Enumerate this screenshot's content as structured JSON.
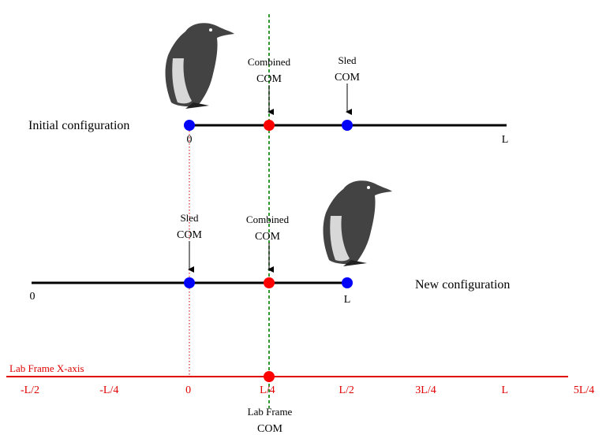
{
  "initial": {
    "label": "Initial configuration",
    "start_label": "0",
    "end_label": "L",
    "combined_com": [
      "Combined",
      "COM"
    ],
    "sled_com": [
      "Sled",
      "COM"
    ]
  },
  "new": {
    "label": "New configuration",
    "start_label": "0",
    "end_label": "L",
    "combined_com": [
      "Combined",
      "COM"
    ],
    "sled_com": [
      "Sled",
      "COM"
    ]
  },
  "lab_axis": {
    "label": "Lab Frame X-axis",
    "ticks": [
      "-L/2",
      "-L/4",
      "0",
      "L/4",
      "L/2",
      "3L/4",
      "L",
      "5L/4"
    ],
    "com_label": [
      "Lab Frame",
      "COM"
    ]
  },
  "colors": {
    "line": "#000000",
    "com_dot": "#ff0000",
    "point_dot": "#0000ff",
    "lab_axis": "#e00000",
    "com_dashed_line": "#008000"
  },
  "icons": {
    "penguin_top": "penguin-icon",
    "penguin_bottom": "penguin-icon"
  }
}
